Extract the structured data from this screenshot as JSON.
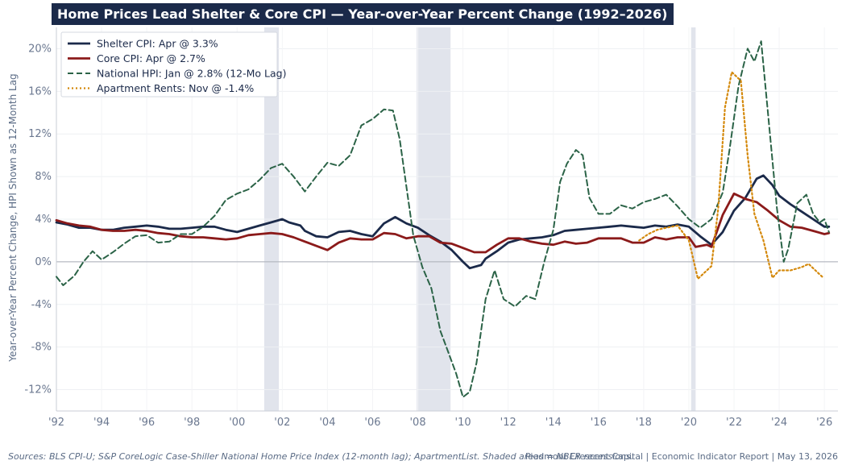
{
  "chart_data": {
    "type": "line",
    "title": "Home Prices Lead Shelter & Core CPI — Year-over-Year Percent Change (1992–2026)",
    "ylabel": "Year-over-Year Percent Change, HPI Shown as 12-Month Lag",
    "xlabel": "",
    "x_ticks": [
      "'92",
      "'94",
      "'96",
      "'98",
      "'00",
      "'02",
      "'04",
      "'06",
      "'08",
      "'10",
      "'12",
      "'14",
      "'16",
      "'18",
      "'20",
      "'22",
      "'24",
      "'26"
    ],
    "y_ticks": [
      "20%",
      "16%",
      "12%",
      "8%",
      "4%",
      "0%",
      "-4%",
      "-8%",
      "-12%"
    ],
    "ylim": [
      -14,
      22
    ],
    "xlim": [
      1992,
      2026.6
    ],
    "grid": true,
    "zero_line": true,
    "legend_position": "top-left",
    "recessions": [
      [
        2001.2,
        2001.85
      ],
      [
        2007.95,
        2009.45
      ],
      [
        2020.1,
        2020.3
      ]
    ],
    "series": [
      {
        "name": "Shelter CPI: Apr @ 3.3%",
        "color": "#1b2a4a",
        "style": "solid",
        "points": [
          [
            1992,
            3.7
          ],
          [
            1992.5,
            3.5
          ],
          [
            1993,
            3.2
          ],
          [
            1993.5,
            3.2
          ],
          [
            1994,
            3.0
          ],
          [
            1994.5,
            3.0
          ],
          [
            1995,
            3.2
          ],
          [
            1995.5,
            3.3
          ],
          [
            1996,
            3.4
          ],
          [
            1996.5,
            3.3
          ],
          [
            1997,
            3.1
          ],
          [
            1997.5,
            3.1
          ],
          [
            1998,
            3.2
          ],
          [
            1998.5,
            3.3
          ],
          [
            1999,
            3.3
          ],
          [
            1999.5,
            3.0
          ],
          [
            2000,
            2.8
          ],
          [
            2000.5,
            3.1
          ],
          [
            2001,
            3.4
          ],
          [
            2001.5,
            3.7
          ],
          [
            2002,
            4.0
          ],
          [
            2002.3,
            3.7
          ],
          [
            2002.8,
            3.4
          ],
          [
            2003,
            2.9
          ],
          [
            2003.5,
            2.4
          ],
          [
            2004,
            2.3
          ],
          [
            2004.5,
            2.8
          ],
          [
            2005,
            2.9
          ],
          [
            2005.5,
            2.6
          ],
          [
            2006,
            2.4
          ],
          [
            2006.5,
            3.6
          ],
          [
            2007,
            4.2
          ],
          [
            2007.5,
            3.6
          ],
          [
            2008,
            3.2
          ],
          [
            2008.5,
            2.5
          ],
          [
            2009,
            1.9
          ],
          [
            2009.5,
            1.1
          ],
          [
            2010,
            0.0
          ],
          [
            2010.3,
            -0.6
          ],
          [
            2010.8,
            -0.3
          ],
          [
            2011,
            0.3
          ],
          [
            2011.5,
            1.0
          ],
          [
            2012,
            1.8
          ],
          [
            2012.5,
            2.1
          ],
          [
            2013,
            2.2
          ],
          [
            2013.5,
            2.3
          ],
          [
            2014,
            2.5
          ],
          [
            2014.5,
            2.9
          ],
          [
            2015,
            3.0
          ],
          [
            2015.5,
            3.1
          ],
          [
            2016,
            3.2
          ],
          [
            2016.5,
            3.3
          ],
          [
            2017,
            3.4
          ],
          [
            2017.5,
            3.3
          ],
          [
            2018,
            3.2
          ],
          [
            2018.5,
            3.4
          ],
          [
            2019,
            3.3
          ],
          [
            2019.5,
            3.5
          ],
          [
            2020,
            3.3
          ],
          [
            2020.5,
            2.4
          ],
          [
            2021,
            1.6
          ],
          [
            2021.5,
            2.8
          ],
          [
            2022,
            4.8
          ],
          [
            2022.5,
            6.0
          ],
          [
            2023,
            7.8
          ],
          [
            2023.3,
            8.1
          ],
          [
            2023.7,
            7.2
          ],
          [
            2024,
            6.2
          ],
          [
            2024.5,
            5.4
          ],
          [
            2025,
            4.7
          ],
          [
            2025.5,
            4.0
          ],
          [
            2026,
            3.3
          ],
          [
            2026.2,
            3.3
          ]
        ]
      },
      {
        "name": "Core CPI: Apr @ 2.7%",
        "color": "#8b1a1a",
        "style": "solid",
        "points": [
          [
            1992,
            3.9
          ],
          [
            1992.5,
            3.6
          ],
          [
            1993,
            3.4
          ],
          [
            1993.5,
            3.3
          ],
          [
            1994,
            3.0
          ],
          [
            1994.5,
            2.9
          ],
          [
            1995,
            2.9
          ],
          [
            1995.5,
            3.0
          ],
          [
            1996,
            2.9
          ],
          [
            1996.5,
            2.7
          ],
          [
            1997,
            2.6
          ],
          [
            1997.5,
            2.4
          ],
          [
            1998,
            2.3
          ],
          [
            1998.5,
            2.3
          ],
          [
            1999,
            2.2
          ],
          [
            1999.5,
            2.1
          ],
          [
            2000,
            2.2
          ],
          [
            2000.5,
            2.5
          ],
          [
            2001,
            2.6
          ],
          [
            2001.5,
            2.7
          ],
          [
            2002,
            2.6
          ],
          [
            2002.5,
            2.3
          ],
          [
            2003,
            1.9
          ],
          [
            2003.5,
            1.5
          ],
          [
            2004,
            1.1
          ],
          [
            2004.5,
            1.8
          ],
          [
            2005,
            2.2
          ],
          [
            2005.5,
            2.1
          ],
          [
            2006,
            2.1
          ],
          [
            2006.5,
            2.7
          ],
          [
            2007,
            2.6
          ],
          [
            2007.5,
            2.2
          ],
          [
            2008,
            2.4
          ],
          [
            2008.5,
            2.4
          ],
          [
            2009,
            1.8
          ],
          [
            2009.5,
            1.7
          ],
          [
            2010,
            1.3
          ],
          [
            2010.5,
            0.9
          ],
          [
            2011,
            0.9
          ],
          [
            2011.5,
            1.6
          ],
          [
            2012,
            2.2
          ],
          [
            2012.5,
            2.2
          ],
          [
            2013,
            1.9
          ],
          [
            2013.5,
            1.7
          ],
          [
            2014,
            1.6
          ],
          [
            2014.5,
            1.9
          ],
          [
            2015,
            1.7
          ],
          [
            2015.5,
            1.8
          ],
          [
            2016,
            2.2
          ],
          [
            2016.5,
            2.2
          ],
          [
            2017,
            2.2
          ],
          [
            2017.5,
            1.8
          ],
          [
            2018,
            1.8
          ],
          [
            2018.5,
            2.3
          ],
          [
            2019,
            2.1
          ],
          [
            2019.5,
            2.3
          ],
          [
            2020,
            2.3
          ],
          [
            2020.3,
            1.4
          ],
          [
            2020.8,
            1.6
          ],
          [
            2021,
            1.4
          ],
          [
            2021.5,
            4.4
          ],
          [
            2022,
            6.4
          ],
          [
            2022.5,
            5.9
          ],
          [
            2023,
            5.6
          ],
          [
            2023.5,
            4.8
          ],
          [
            2024,
            3.9
          ],
          [
            2024.5,
            3.3
          ],
          [
            2025,
            3.2
          ],
          [
            2025.5,
            2.9
          ],
          [
            2026,
            2.6
          ],
          [
            2026.2,
            2.7
          ]
        ]
      },
      {
        "name": "National HPI: Jan @ 2.8% (12-Mo Lag)",
        "color": "#2b6347",
        "style": "dashed",
        "points": [
          [
            1992,
            -1.4
          ],
          [
            1992.3,
            -2.2
          ],
          [
            1992.8,
            -1.3
          ],
          [
            1993.2,
            0.0
          ],
          [
            1993.6,
            1.0
          ],
          [
            1994,
            0.2
          ],
          [
            1994.5,
            0.9
          ],
          [
            1995,
            1.7
          ],
          [
            1995.5,
            2.4
          ],
          [
            1996,
            2.5
          ],
          [
            1996.5,
            1.8
          ],
          [
            1997,
            1.9
          ],
          [
            1997.5,
            2.6
          ],
          [
            1998,
            2.6
          ],
          [
            1998.5,
            3.3
          ],
          [
            1999,
            4.3
          ],
          [
            1999.5,
            5.8
          ],
          [
            2000,
            6.4
          ],
          [
            2000.5,
            6.8
          ],
          [
            2001,
            7.7
          ],
          [
            2001.5,
            8.8
          ],
          [
            2002,
            9.2
          ],
          [
            2002.5,
            8.0
          ],
          [
            2003,
            6.6
          ],
          [
            2003.5,
            8.0
          ],
          [
            2004,
            9.3
          ],
          [
            2004.5,
            9.0
          ],
          [
            2005,
            10.0
          ],
          [
            2005.5,
            12.8
          ],
          [
            2006,
            13.4
          ],
          [
            2006.5,
            14.3
          ],
          [
            2006.9,
            14.2
          ],
          [
            2007.2,
            11.5
          ],
          [
            2007.5,
            7.0
          ],
          [
            2007.8,
            2.5
          ],
          [
            2008.2,
            -0.5
          ],
          [
            2008.6,
            -2.5
          ],
          [
            2009,
            -6.5
          ],
          [
            2009.3,
            -8.2
          ],
          [
            2009.7,
            -10.5
          ],
          [
            2010,
            -12.7
          ],
          [
            2010.3,
            -12.2
          ],
          [
            2010.6,
            -9.5
          ],
          [
            2011,
            -3.5
          ],
          [
            2011.4,
            -0.8
          ],
          [
            2011.8,
            -3.5
          ],
          [
            2012.3,
            -4.2
          ],
          [
            2012.8,
            -3.2
          ],
          [
            2013.2,
            -3.5
          ],
          [
            2013.6,
            0.0
          ],
          [
            2014,
            3.0
          ],
          [
            2014.3,
            7.5
          ],
          [
            2014.6,
            9.2
          ],
          [
            2015,
            10.5
          ],
          [
            2015.3,
            10.0
          ],
          [
            2015.6,
            6.0
          ],
          [
            2016,
            4.5
          ],
          [
            2016.5,
            4.5
          ],
          [
            2017,
            5.3
          ],
          [
            2017.5,
            5.0
          ],
          [
            2018,
            5.6
          ],
          [
            2018.5,
            5.9
          ],
          [
            2019,
            6.3
          ],
          [
            2019.5,
            5.2
          ],
          [
            2020,
            4.0
          ],
          [
            2020.5,
            3.2
          ],
          [
            2021,
            4.0
          ],
          [
            2021.5,
            6.5
          ],
          [
            2021.8,
            10.5
          ],
          [
            2022.2,
            16.5
          ],
          [
            2022.6,
            20.0
          ],
          [
            2022.9,
            18.8
          ],
          [
            2023.2,
            20.7
          ],
          [
            2023.5,
            14.0
          ],
          [
            2023.9,
            5.0
          ],
          [
            2024.2,
            0.0
          ],
          [
            2024.4,
            1.2
          ],
          [
            2024.8,
            5.5
          ],
          [
            2025.2,
            6.3
          ],
          [
            2025.5,
            4.5
          ],
          [
            2025.8,
            3.7
          ],
          [
            2026,
            4.0
          ],
          [
            2026.2,
            2.8
          ]
        ]
      },
      {
        "name": "Apartment Rents: Nov @ -1.4%",
        "color": "#d4890c",
        "style": "dotted",
        "points": [
          [
            2017.8,
            2.0
          ],
          [
            2018.2,
            2.6
          ],
          [
            2018.6,
            3.0
          ],
          [
            2019,
            3.2
          ],
          [
            2019.5,
            3.4
          ],
          [
            2020,
            2.0
          ],
          [
            2020.4,
            -1.6
          ],
          [
            2020.7,
            -1.0
          ],
          [
            2021,
            -0.4
          ],
          [
            2021.3,
            5.0
          ],
          [
            2021.6,
            14.5
          ],
          [
            2021.9,
            17.8
          ],
          [
            2022.3,
            17.0
          ],
          [
            2022.6,
            10.0
          ],
          [
            2022.9,
            4.5
          ],
          [
            2023.3,
            2.0
          ],
          [
            2023.7,
            -1.5
          ],
          [
            2024,
            -0.8
          ],
          [
            2024.5,
            -0.8
          ],
          [
            2025,
            -0.5
          ],
          [
            2025.3,
            -0.2
          ],
          [
            2025.6,
            -0.8
          ],
          [
            2025.9,
            -1.4
          ]
        ]
      }
    ]
  },
  "footer": {
    "source": "Sources: BLS CPI-U; S&P CoreLogic Case-Shiller National Home Price Index (12-month lag); ApartmentList. Shaded areas = NBER recessions.",
    "report": "Piedmont Crescent Capital  |  Economic Indicator Report  |  May 13, 2026"
  }
}
